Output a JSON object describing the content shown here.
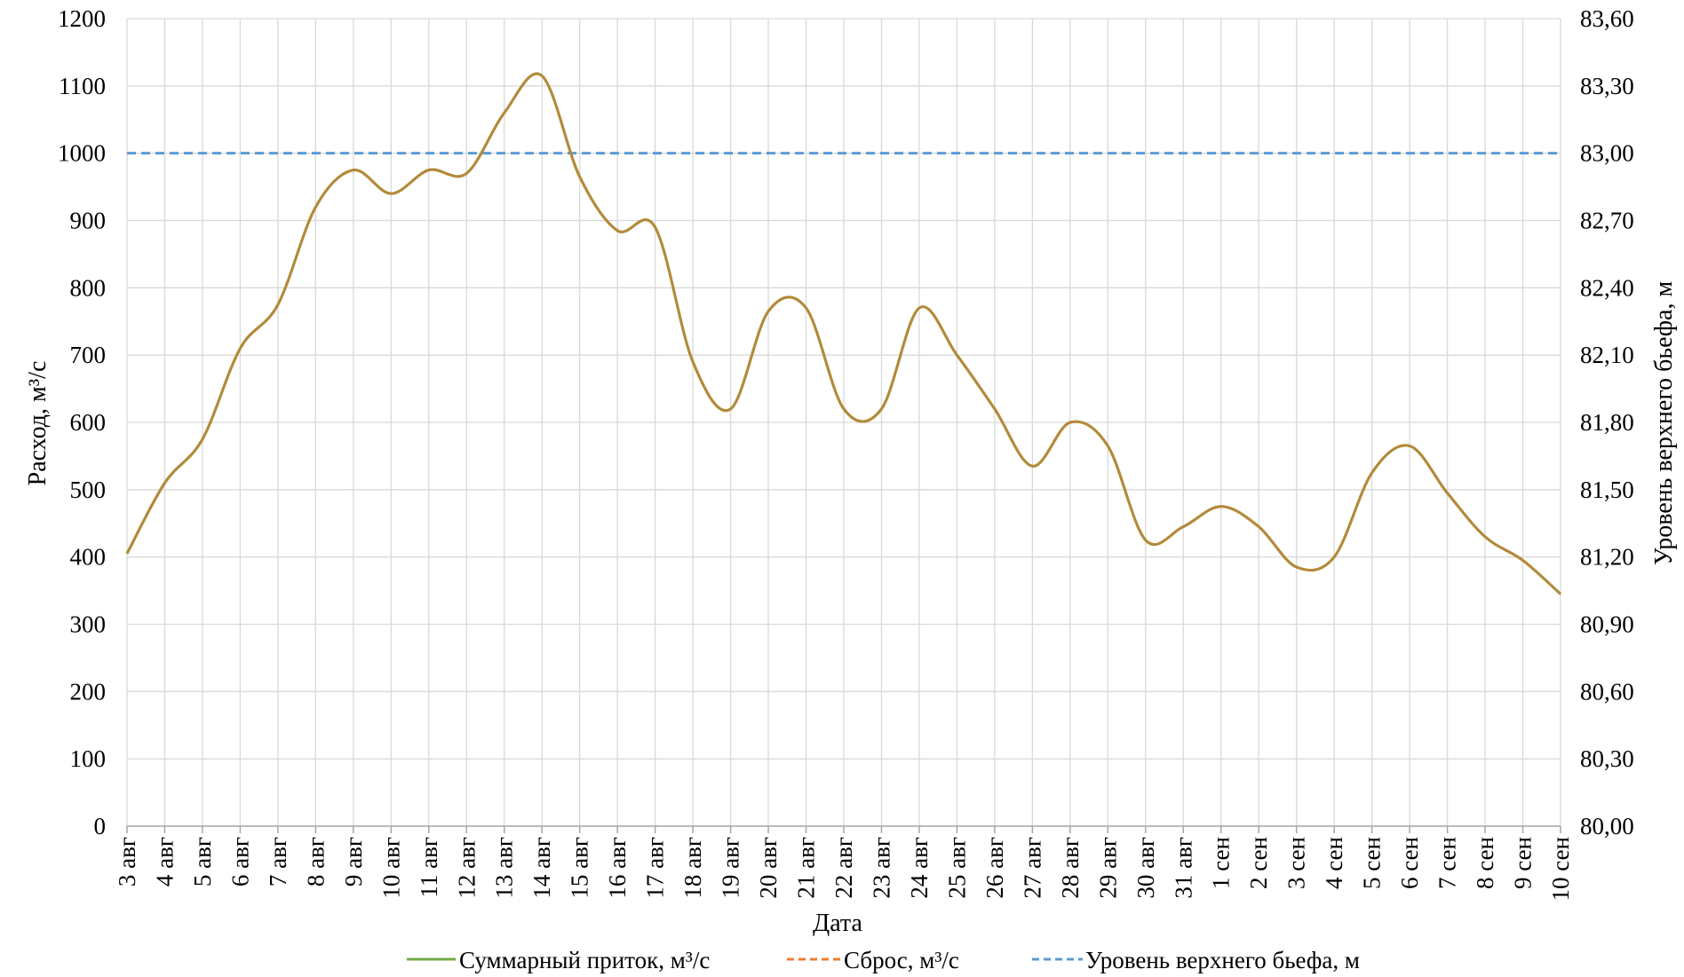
{
  "chart_data": {
    "type": "line",
    "xlabel": "Дата",
    "ylabel_left": "Расход, м³/с",
    "ylabel_right": "Уровень верхнего бьефа, м",
    "ylim_left": [
      0,
      1200
    ],
    "ylim_right": [
      80.0,
      83.6
    ],
    "yticks_left": [
      "0",
      "100",
      "200",
      "300",
      "400",
      "500",
      "600",
      "700",
      "800",
      "900",
      "1000",
      "1100",
      "1200"
    ],
    "yticks_right": [
      "80,00",
      "80,30",
      "80,60",
      "80,90",
      "81,20",
      "81,50",
      "81,80",
      "82,10",
      "82,40",
      "82,70",
      "83,00",
      "83,30",
      "83,60"
    ],
    "grid": true,
    "legend_position": "bottom",
    "categories": [
      "3 авг",
      "4 авг",
      "5 авг",
      "6 авг",
      "7 авг",
      "8 авг",
      "9 авг",
      "10 авг",
      "11 авг",
      "12 авг",
      "13 авг",
      "14 авг",
      "15 авг",
      "16 авг",
      "17 авг",
      "18 авг",
      "19 авг",
      "20 авг",
      "21 авг",
      "22 авг",
      "23 авг",
      "24 авг",
      "25 авг",
      "26 авг",
      "27 авг",
      "28 авг",
      "29 авг",
      "30 авг",
      "31 авг",
      "1 сен",
      "2 сен",
      "3 сен",
      "4 сен",
      "5 сен",
      "6 сен",
      "7 сен",
      "8 сен",
      "9 сен",
      "10 сен"
    ],
    "series": [
      {
        "name": "Суммарный приток, м³/с",
        "axis": "left",
        "color": "#70ad47",
        "dash": "solid",
        "values": [
          405,
          510,
          575,
          710,
          775,
          920,
          975,
          940,
          975,
          970,
          1060,
          1115,
          965,
          885,
          890,
          690,
          620,
          765,
          770,
          620,
          620,
          770,
          700,
          620,
          535,
          600,
          565,
          425,
          445,
          475,
          445,
          385,
          400,
          525,
          565,
          495,
          430,
          395,
          345
        ]
      },
      {
        "name": "Сброс, м³/с",
        "axis": "left",
        "color": "#ed7d31",
        "dash": "dashed",
        "values": [
          405,
          510,
          575,
          710,
          775,
          920,
          975,
          940,
          975,
          970,
          1060,
          1115,
          965,
          885,
          890,
          690,
          620,
          765,
          770,
          620,
          620,
          770,
          700,
          620,
          535,
          600,
          565,
          425,
          445,
          475,
          445,
          385,
          400,
          525,
          565,
          495,
          430,
          395,
          345
        ]
      },
      {
        "name": "Уровень верхнего бьефа, м",
        "axis": "right",
        "color": "#5b9bd5",
        "dash": "dashed",
        "values": [
          83.0,
          83.0,
          83.0,
          83.0,
          83.0,
          83.0,
          83.0,
          83.0,
          83.0,
          83.0,
          83.0,
          83.0,
          83.0,
          83.0,
          83.0,
          83.0,
          83.0,
          83.0,
          83.0,
          83.0,
          83.0,
          83.0,
          83.0,
          83.0,
          83.0,
          83.0,
          83.0,
          83.0,
          83.0,
          83.0,
          83.0,
          83.0,
          83.0,
          83.0,
          83.0,
          83.0,
          83.0,
          83.0,
          83.0
        ]
      }
    ],
    "visible_line_color": "#b5893a"
  }
}
